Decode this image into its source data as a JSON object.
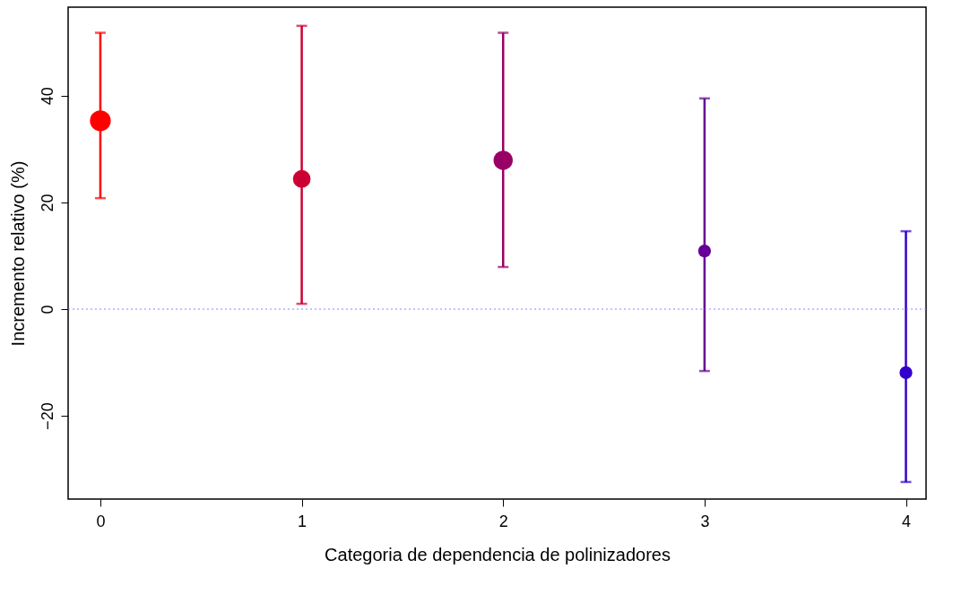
{
  "chart_data": {
    "type": "bubble",
    "xlabel": "Categoria de dependencia de polinizadores",
    "ylabel": "Incremento relativo (%)",
    "x": [
      0,
      1,
      2,
      3,
      4
    ],
    "values": [
      35.3,
      24.4,
      27.9,
      10.9,
      -11.9
    ],
    "errors": [
      [
        20.8,
        51.8
      ],
      [
        1.0,
        53.1
      ],
      [
        7.9,
        51.8
      ],
      [
        -11.6,
        39.5
      ],
      [
        -32.4,
        14.6
      ]
    ],
    "sizes": [
      1,
      0.72,
      0.85,
      0.38,
      0.38
    ],
    "colors": [
      "#ff0000",
      "#cc0033",
      "#990066",
      "#660099",
      "#3300cc"
    ],
    "xlim": [
      -0.16,
      4.1
    ],
    "xticks": [
      0,
      1,
      2,
      3,
      4
    ],
    "ylim": [
      -35.6,
      56.6
    ],
    "yticks": [
      -20,
      0,
      20,
      40
    ],
    "ref_lines": [
      {
        "axis": "y",
        "value": 0,
        "color": "#8888ff",
        "line_style": "dotted"
      }
    ],
    "grid": false,
    "legend": false
  }
}
